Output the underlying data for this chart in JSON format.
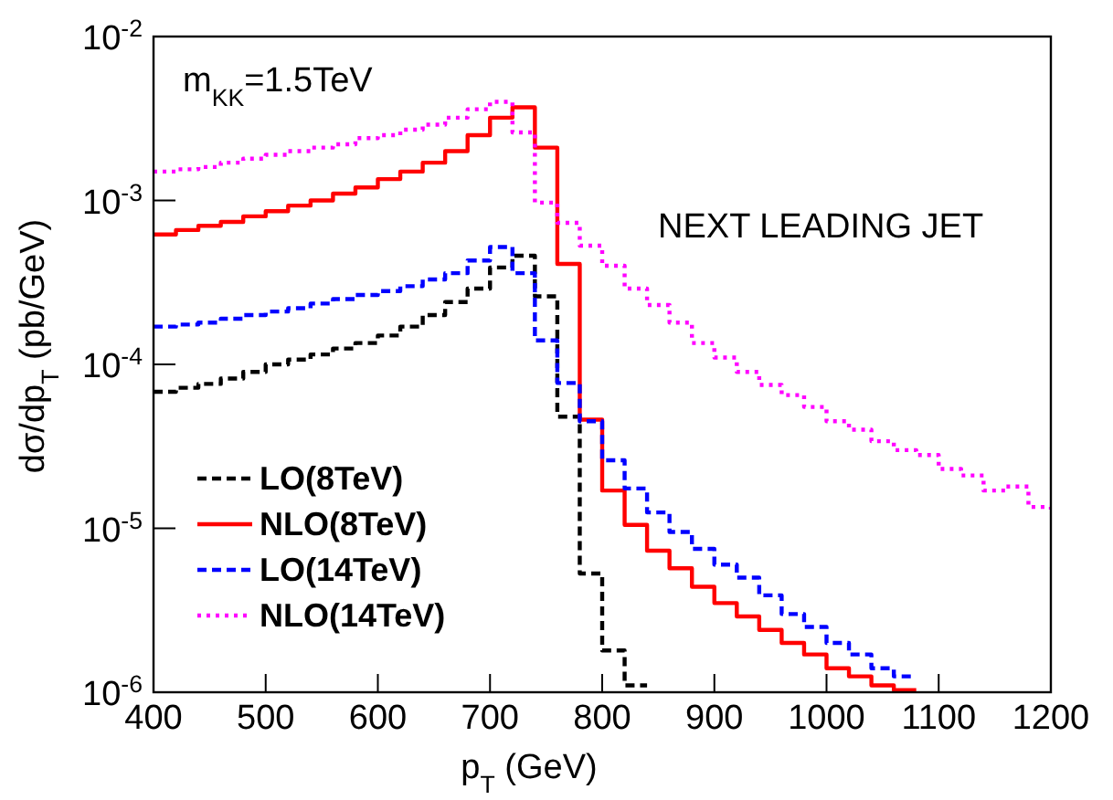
{
  "chart_data": {
    "type": "step",
    "xlabel": "p$_{T}$ (GeV)",
    "ylabel": "dσ/dp$_{T}$ (pb/GeV)",
    "log": "y",
    "xlim": [
      400,
      1200
    ],
    "ylim": [
      1e-06,
      0.01
    ],
    "xticks": [
      400,
      500,
      600,
      700,
      800,
      900,
      1000,
      1100,
      1200
    ],
    "yticks": [
      {
        "value": 1e-06,
        "label": "10$^{-6}$"
      },
      {
        "value": 1e-05,
        "label": "10$^{-5}$"
      },
      {
        "value": 0.0001,
        "label": "10$^{-4}$"
      },
      {
        "value": 0.001,
        "label": "10$^{-3}$"
      },
      {
        "value": 0.01,
        "label": "10$^{-2}$"
      }
    ],
    "grid": false,
    "legend": "bottom left",
    "annotations": [
      "m$_{KK}$=1.5TeV",
      "NEXT LEADING JET"
    ],
    "series": [
      {
        "name": "LO(8TeV)",
        "color": "#000000",
        "line_style": "dashed",
        "x": [
          400,
          420,
          440,
          460,
          480,
          500,
          520,
          540,
          560,
          580,
          600,
          620,
          640,
          660,
          680,
          700,
          720,
          740,
          760,
          780,
          800,
          820,
          840
        ],
        "values": [
          6.8e-05,
          7.2e-05,
          7.6e-05,
          8.2e-05,
          9e-05,
          0.0001,
          0.000107,
          0.000115,
          0.000125,
          0.000135,
          0.00015,
          0.00017,
          0.0002,
          0.00024,
          0.00029,
          0.00039,
          0.00046,
          0.00026,
          4.8e-05,
          5.3e-06,
          1.8e-06,
          1.1e-06,
          1.1e-06
        ]
      },
      {
        "name": "NLO(8TeV)",
        "color": "#ff0000",
        "line_style": "solid",
        "x": [
          400,
          420,
          440,
          460,
          480,
          500,
          520,
          540,
          560,
          580,
          600,
          620,
          640,
          660,
          680,
          700,
          720,
          740,
          760,
          780,
          800,
          820,
          840,
          860,
          880,
          900,
          920,
          940,
          960,
          980,
          1000,
          1020,
          1040,
          1060,
          1080
        ],
        "values": [
          0.00062,
          0.00066,
          0.0007,
          0.00074,
          0.0008,
          0.00086,
          0.00093,
          0.001,
          0.0011,
          0.0012,
          0.00135,
          0.0015,
          0.0017,
          0.002,
          0.0025,
          0.0032,
          0.0037,
          0.0021,
          0.00041,
          4.6e-05,
          1.7e-05,
          1.05e-05,
          7.3e-06,
          5.7e-06,
          4.4e-06,
          3.5e-06,
          2.9e-06,
          2.4e-06,
          2e-06,
          1.7e-06,
          1.4e-06,
          1.25e-06,
          1.1e-06,
          1.03e-06,
          1.03e-06
        ]
      },
      {
        "name": "LO(14TeV)",
        "color": "#0000ff",
        "line_style": "dashed",
        "x": [
          400,
          420,
          440,
          460,
          480,
          500,
          520,
          540,
          560,
          580,
          600,
          620,
          640,
          660,
          680,
          700,
          720,
          740,
          760,
          780,
          800,
          820,
          840,
          860,
          880,
          900,
          920,
          940,
          960,
          980,
          1000,
          1020,
          1040,
          1060,
          1080
        ],
        "values": [
          0.00017,
          0.000175,
          0.00018,
          0.00019,
          0.0002,
          0.00021,
          0.00022,
          0.000235,
          0.00025,
          0.000265,
          0.00028,
          0.0003,
          0.00033,
          0.00036,
          0.00043,
          0.00052,
          0.00036,
          0.00014,
          7.7e-05,
          4.5e-05,
          2.6e-05,
          1.75e-05,
          1.25e-05,
          9.5e-06,
          7.5e-06,
          6e-06,
          5e-06,
          3.9e-06,
          3e-06,
          2.5e-06,
          2e-06,
          1.7e-06,
          1.4e-06,
          1.25e-06,
          1.25e-06
        ]
      },
      {
        "name": "NLO(14TeV)",
        "color": "#ff00ff",
        "line_style": "dotted",
        "x": [
          400,
          420,
          440,
          460,
          480,
          500,
          520,
          540,
          560,
          580,
          600,
          620,
          640,
          660,
          680,
          700,
          720,
          740,
          760,
          780,
          800,
          820,
          840,
          860,
          880,
          900,
          920,
          940,
          960,
          980,
          1000,
          1020,
          1040,
          1060,
          1080,
          1100,
          1120,
          1140,
          1160,
          1180,
          1200
        ],
        "values": [
          0.0015,
          0.00155,
          0.0016,
          0.0017,
          0.0018,
          0.0019,
          0.002,
          0.0021,
          0.0022,
          0.0024,
          0.0025,
          0.0027,
          0.0029,
          0.0032,
          0.0036,
          0.004,
          0.0026,
          0.00097,
          0.00073,
          0.00053,
          0.0004,
          0.00029,
          0.00023,
          0.00018,
          0.000135,
          0.00011,
          9e-05,
          7.5e-05,
          6.5e-05,
          5.5e-05,
          4.5e-05,
          4e-05,
          3.4e-05,
          3e-05,
          2.8e-05,
          2.3e-05,
          2.1e-05,
          1.7e-05,
          1.8e-05,
          1.35e-05,
          1.3e-05
        ]
      }
    ]
  }
}
